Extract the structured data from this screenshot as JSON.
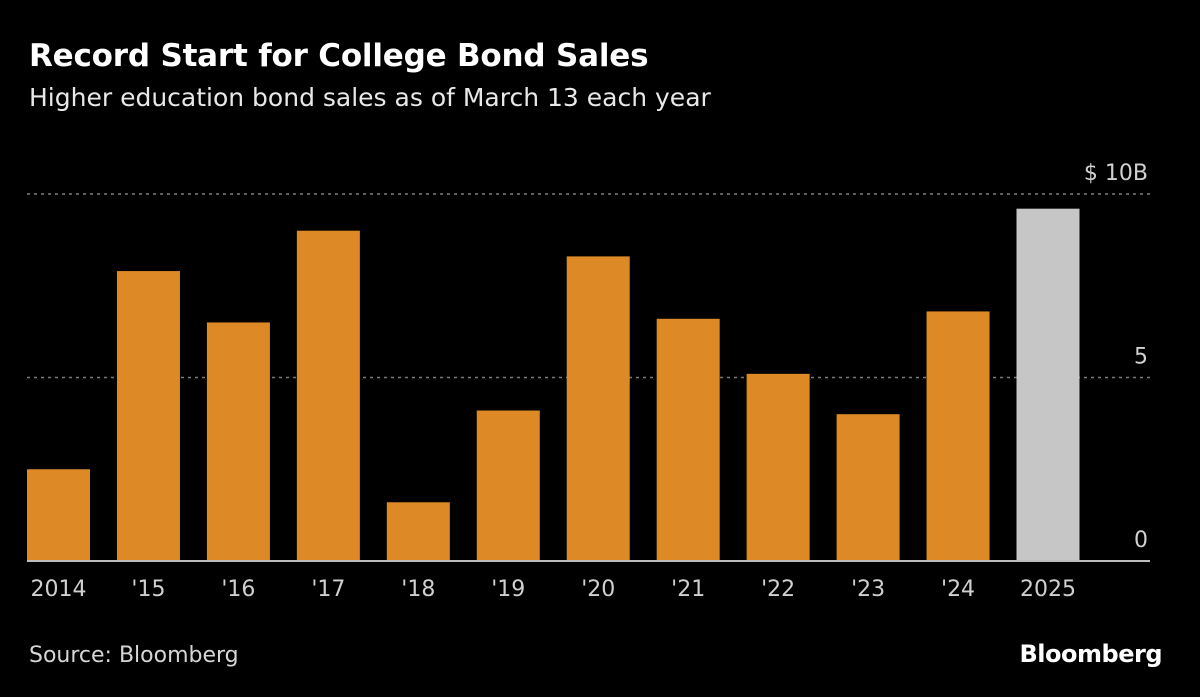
{
  "header": {
    "title": "Record Start for College Bond Sales",
    "subtitle": "Higher education bond sales as of March 13 each year"
  },
  "footer": {
    "source": "Source: Bloomberg",
    "brand": "Bloomberg"
  },
  "chart_data": {
    "type": "bar",
    "title": "Record Start for College Bond Sales",
    "subtitle": "Higher education bond sales as of March 13 each year",
    "categories": [
      "2014",
      "'15",
      "'16",
      "'17",
      "'18",
      "'19",
      "'20",
      "'21",
      "'22",
      "'23",
      "'24",
      "2025"
    ],
    "values": [
      2.5,
      7.9,
      6.5,
      9.0,
      1.6,
      4.1,
      8.3,
      6.6,
      5.1,
      4.0,
      6.8,
      9.6
    ],
    "unit": "$ billions",
    "ylim": [
      0,
      10
    ],
    "y_ticks": [
      {
        "value": 0,
        "label": "0"
      },
      {
        "value": 5,
        "label": "5"
      },
      {
        "value": 10,
        "label": "$ 10B"
      }
    ],
    "y_axis_position": "right",
    "grid": true,
    "colors": {
      "default_bar": "#dd8a26",
      "highlight_bar": "#c6c6c6",
      "highlight_category": "2025",
      "gridline": "#7a7a7a",
      "baseline": "#bdbdbd",
      "tick_text": "#d0d0d0"
    }
  }
}
